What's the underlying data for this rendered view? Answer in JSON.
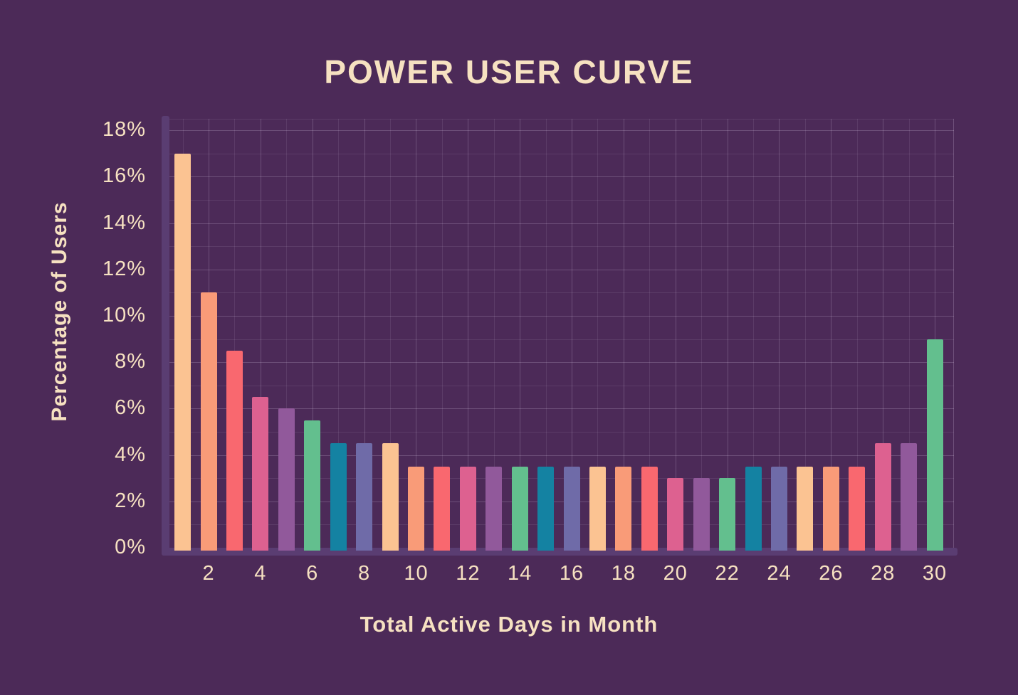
{
  "colors": {
    "background": "#4c2a58",
    "axis_band": "#5a3d72",
    "text": "#f6e1c1",
    "grid_major": "rgba(243,228,255,0.20)",
    "grid_minor": "rgba(243,228,255,0.09)"
  },
  "chart_data": {
    "type": "bar",
    "title": "POWER USER CURVE",
    "xlabel": "Total Active Days in Month",
    "ylabel": "Percentage of Users",
    "x": [
      1,
      2,
      3,
      4,
      5,
      6,
      7,
      8,
      9,
      10,
      11,
      12,
      13,
      14,
      15,
      16,
      17,
      18,
      19,
      20,
      21,
      22,
      23,
      24,
      25,
      26,
      27,
      28,
      29,
      30
    ],
    "values": [
      17,
      11,
      8.5,
      6.5,
      6,
      5.5,
      4.5,
      4.5,
      4.5,
      3.5,
      3.5,
      3.5,
      3.5,
      3.5,
      3.5,
      3.5,
      3.5,
      3.5,
      3.5,
      3,
      3,
      3,
      3.5,
      3.5,
      3.5,
      3.5,
      3.5,
      4.5,
      4.5,
      9
    ],
    "unit": "%",
    "ylim": [
      0,
      18
    ],
    "y_tick_labels": [
      "0%",
      "2%",
      "4%",
      "6%",
      "8%",
      "10%",
      "12%",
      "14%",
      "16%",
      "18%"
    ],
    "y_tick_values": [
      0,
      2,
      4,
      6,
      8,
      10,
      12,
      14,
      16,
      18
    ],
    "x_tick_labels": [
      "2",
      "4",
      "6",
      "8",
      "10",
      "12",
      "14",
      "16",
      "18",
      "20",
      "22",
      "24",
      "26",
      "28",
      "30"
    ],
    "x_tick_values": [
      2,
      4,
      6,
      8,
      10,
      12,
      14,
      16,
      18,
      20,
      22,
      24,
      26,
      28,
      30
    ],
    "grid": "on",
    "legend": "none",
    "bar_palette": [
      "#fbc392",
      "#f99b78",
      "#f9686f",
      "#dd6190",
      "#91599b",
      "#63bf8e",
      "#1482a2",
      "#6f6ba8"
    ],
    "palette_cycle_period": 8
  }
}
